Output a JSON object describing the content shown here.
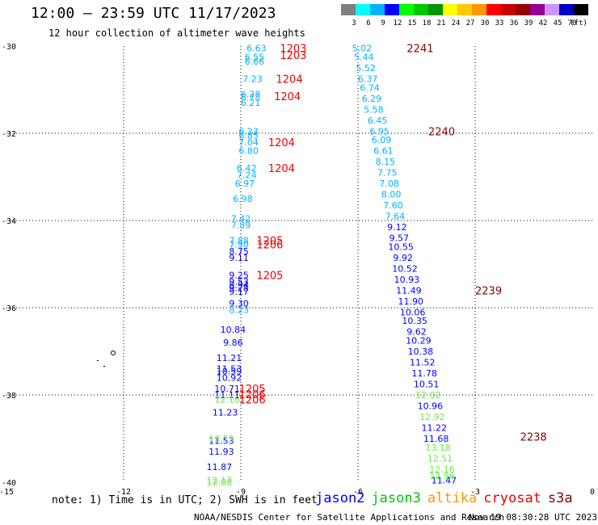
{
  "header": {
    "title": "12:00 – 23:59 UTC 11/17/2023",
    "subtitle": "12 hour collection of altimeter wave heights"
  },
  "colorbar": {
    "colors": [
      "#7f7f7f",
      "#00ffff",
      "#00b4ff",
      "#0000ff",
      "#00ff00",
      "#00c800",
      "#009600",
      "#ffff00",
      "#ffc800",
      "#ff9600",
      "#ff0000",
      "#c80000",
      "#960000",
      "#960096",
      "#c896ff",
      "#0000c8",
      "#000000"
    ],
    "labels": [
      "3",
      "6",
      "9",
      "12",
      "15",
      "18",
      "21",
      "24",
      "27",
      "30",
      "33",
      "36",
      "39",
      "42",
      "45",
      "70",
      "(ft)"
    ]
  },
  "chart_data": {
    "type": "scatter",
    "xlim": [
      -15,
      0
    ],
    "ylim": [
      -40,
      -30
    ],
    "x_ticks": [
      "-15",
      "-12",
      "-9",
      "-6",
      "-3",
      "0"
    ],
    "y_ticks": [
      "-30",
      "-32",
      "-34",
      "-36",
      "-38",
      "-40"
    ],
    "grid": true,
    "series": [
      {
        "name": "track1",
        "color": "#00b4ff",
        "points": [
          {
            "x": -8.6,
            "y": -30.05,
            "label": "6.63"
          },
          {
            "x": -8.65,
            "y": -30.25,
            "label": "6.55"
          },
          {
            "x": -8.65,
            "y": -30.35,
            "label": "6.66"
          },
          {
            "x": -8.7,
            "y": -30.75,
            "label": "7.23"
          },
          {
            "x": -8.75,
            "y": -31.1,
            "label": "6.28"
          },
          {
            "x": -8.75,
            "y": -31.18,
            "label": "6.78"
          },
          {
            "x": -8.75,
            "y": -31.3,
            "label": "6.21"
          },
          {
            "x": -8.8,
            "y": -31.95,
            "label": "6.23"
          },
          {
            "x": -8.8,
            "y": -32.05,
            "label": "6.85"
          },
          {
            "x": -8.8,
            "y": -32.2,
            "label": "7.04"
          },
          {
            "x": -8.8,
            "y": -32.4,
            "label": "6.80"
          },
          {
            "x": -8.85,
            "y": -32.8,
            "label": "6.42"
          },
          {
            "x": -8.85,
            "y": -32.95,
            "label": "7.24"
          },
          {
            "x": -8.9,
            "y": -33.15,
            "label": "6.97"
          },
          {
            "x": -8.95,
            "y": -33.5,
            "label": "6.98"
          },
          {
            "x": -9.0,
            "y": -33.95,
            "label": "7.42"
          },
          {
            "x": -9.0,
            "y": -34.1,
            "label": "7.89"
          },
          {
            "x": -9.05,
            "y": -34.45,
            "label": "7.88"
          },
          {
            "x": -9.05,
            "y": -34.55,
            "label": "7.90"
          },
          {
            "x": -9.05,
            "y": -36.05,
            "label": "8.23"
          }
        ]
      },
      {
        "name": "track1-jason2",
        "color": "#0000ff",
        "points": [
          {
            "x": -9.05,
            "y": -34.7,
            "label": "8.75"
          },
          {
            "x": -9.05,
            "y": -34.85,
            "label": "9.11"
          },
          {
            "x": -9.05,
            "y": -35.25,
            "label": "9.25"
          },
          {
            "x": -9.05,
            "y": -35.4,
            "label": "9.53"
          },
          {
            "x": -9.05,
            "y": -35.47,
            "label": "8.94"
          },
          {
            "x": -9.05,
            "y": -35.55,
            "label": "9.28"
          },
          {
            "x": -9.05,
            "y": -35.63,
            "label": "9.17"
          },
          {
            "x": -9.05,
            "y": -35.9,
            "label": "9.30"
          },
          {
            "x": -9.2,
            "y": -36.5,
            "label": "10.84"
          },
          {
            "x": -9.2,
            "y": -36.8,
            "label": "9.86"
          },
          {
            "x": -9.3,
            "y": -37.15,
            "label": "11.21"
          },
          {
            "x": -9.3,
            "y": -37.4,
            "label": "11.53"
          },
          {
            "x": -9.3,
            "y": -37.45,
            "label": "10.59"
          },
          {
            "x": -9.3,
            "y": -37.6,
            "label": "10.92"
          },
          {
            "x": -9.35,
            "y": -37.85,
            "label": "10.71"
          },
          {
            "x": -9.35,
            "y": -38.0,
            "label": "11.11"
          },
          {
            "x": -9.4,
            "y": -38.4,
            "label": "11.23"
          },
          {
            "x": -9.5,
            "y": -39.05,
            "label": "11.53"
          },
          {
            "x": -9.5,
            "y": -39.3,
            "label": "11.93"
          },
          {
            "x": -9.55,
            "y": -39.65,
            "label": "11.87"
          }
        ]
      },
      {
        "name": "track1-jason3",
        "color": "#66ee44",
        "points": [
          {
            "x": -9.35,
            "y": -38.1,
            "label": "12.16"
          },
          {
            "x": -9.5,
            "y": -39.0,
            "label": "13.13"
          },
          {
            "x": -9.55,
            "y": -39.95,
            "label": "12.17"
          },
          {
            "x": -9.55,
            "y": -40.0,
            "label": "12.08"
          }
        ]
      },
      {
        "name": "track2",
        "color": "#00b4ff",
        "points": [
          {
            "x": -5.9,
            "y": -30.05,
            "label": "5.02"
          },
          {
            "x": -5.85,
            "y": -30.25,
            "label": "5.44"
          },
          {
            "x": -5.8,
            "y": -30.5,
            "label": "5.52"
          },
          {
            "x": -5.75,
            "y": -30.75,
            "label": "6.37"
          },
          {
            "x": -5.7,
            "y": -30.95,
            "label": "6.74"
          },
          {
            "x": -5.65,
            "y": -31.2,
            "label": "6.29"
          },
          {
            "x": -5.6,
            "y": -31.45,
            "label": "5.58"
          },
          {
            "x": -5.5,
            "y": -31.7,
            "label": "6.45"
          },
          {
            "x": -5.45,
            "y": -31.95,
            "label": "6.95"
          },
          {
            "x": -5.4,
            "y": -32.15,
            "label": "6.09"
          },
          {
            "x": -5.35,
            "y": -32.4,
            "label": "6.61"
          },
          {
            "x": -5.3,
            "y": -32.65,
            "label": "8.15"
          },
          {
            "x": -5.25,
            "y": -32.9,
            "label": "7.75"
          },
          {
            "x": -5.2,
            "y": -33.15,
            "label": "7.08"
          },
          {
            "x": -5.15,
            "y": -33.4,
            "label": "8.00"
          },
          {
            "x": -5.1,
            "y": -33.65,
            "label": "7.60"
          },
          {
            "x": -5.05,
            "y": -33.9,
            "label": "7.64"
          }
        ]
      },
      {
        "name": "track2-jason2",
        "color": "#0000ff",
        "points": [
          {
            "x": -5.0,
            "y": -34.15,
            "label": "9.12"
          },
          {
            "x": -4.95,
            "y": -34.4,
            "label": "9.57"
          },
          {
            "x": -4.9,
            "y": -34.6,
            "label": "10.55"
          },
          {
            "x": -4.85,
            "y": -34.85,
            "label": "9.92"
          },
          {
            "x": -4.8,
            "y": -35.1,
            "label": "10.52"
          },
          {
            "x": -4.75,
            "y": -35.35,
            "label": "10.93"
          },
          {
            "x": -4.7,
            "y": -35.6,
            "label": "11.49"
          },
          {
            "x": -4.65,
            "y": -35.85,
            "label": "11.90"
          },
          {
            "x": -4.6,
            "y": -36.1,
            "label": "10.06"
          },
          {
            "x": -4.55,
            "y": -36.3,
            "label": "10.35"
          },
          {
            "x": -4.5,
            "y": -36.55,
            "label": "9.62"
          },
          {
            "x": -4.45,
            "y": -36.75,
            "label": "10.29"
          },
          {
            "x": -4.4,
            "y": -37.0,
            "label": "10.38"
          },
          {
            "x": -4.35,
            "y": -37.25,
            "label": "11.52"
          },
          {
            "x": -4.3,
            "y": -37.5,
            "label": "11.78"
          },
          {
            "x": -4.25,
            "y": -37.75,
            "label": "10.51"
          },
          {
            "x": -4.15,
            "y": -38.25,
            "label": "10.96"
          },
          {
            "x": -4.05,
            "y": -38.75,
            "label": "11.22"
          },
          {
            "x": -4.0,
            "y": -39.0,
            "label": "11.68"
          },
          {
            "x": -3.8,
            "y": -39.95,
            "label": "11.47"
          }
        ]
      },
      {
        "name": "track2-jason3",
        "color": "#66ee44",
        "points": [
          {
            "x": -4.2,
            "y": -38.0,
            "label": "12.02"
          },
          {
            "x": -4.1,
            "y": -38.5,
            "label": "12.92"
          },
          {
            "x": -3.95,
            "y": -39.2,
            "label": "13.18"
          },
          {
            "x": -3.9,
            "y": -39.45,
            "label": "12.51"
          },
          {
            "x": -3.85,
            "y": -39.7,
            "label": "12.16"
          },
          {
            "x": -3.85,
            "y": -39.85,
            "label": "12.96"
          }
        ]
      }
    ],
    "time_labels": [
      {
        "x": -8.0,
        "y": -30.05,
        "label": "1203",
        "color": "#ee0000"
      },
      {
        "x": -8.0,
        "y": -30.2,
        "label": "1203",
        "color": "#ee0000"
      },
      {
        "x": -8.1,
        "y": -30.75,
        "label": "1204",
        "color": "#ee0000"
      },
      {
        "x": -8.15,
        "y": -31.15,
        "label": "1204",
        "color": "#ee0000"
      },
      {
        "x": -8.3,
        "y": -32.2,
        "label": "1204",
        "color": "#ee0000"
      },
      {
        "x": -8.3,
        "y": -32.8,
        "label": "1204",
        "color": "#ee0000"
      },
      {
        "x": -8.6,
        "y": -34.45,
        "label": "1205",
        "color": "#ee0000"
      },
      {
        "x": -8.6,
        "y": -34.55,
        "label": "1206",
        "color": "#ee0000"
      },
      {
        "x": -8.6,
        "y": -35.25,
        "label": "1205",
        "color": "#ee0000"
      },
      {
        "x": -9.05,
        "y": -37.85,
        "label": "1205",
        "color": "#ee0000"
      },
      {
        "x": -9.05,
        "y": -37.98,
        "label": "1206",
        "color": "#ee0000"
      },
      {
        "x": -9.05,
        "y": -38.1,
        "label": "1206",
        "color": "#ee0000"
      },
      {
        "x": -4.75,
        "y": -30.05,
        "label": "2241",
        "color": "#880000"
      },
      {
        "x": -4.2,
        "y": -31.95,
        "label": "2240",
        "color": "#880000"
      },
      {
        "x": -3.0,
        "y": -35.6,
        "label": "2239",
        "color": "#880000"
      },
      {
        "x": -1.85,
        "y": -38.95,
        "label": "2238",
        "color": "#880000"
      }
    ]
  },
  "footer": {
    "note": "note: 1) Time is in UTC; 2) SWH is in feet",
    "credit": "NOAA/NESDIS Center for Satellite Applications and Research",
    "timestamp": "Nov 19 08:30:28 UTC 2023",
    "legend": [
      {
        "label": "jason2",
        "color": "#0000ff"
      },
      {
        "label": "jason3",
        "color": "#00c800"
      },
      {
        "label": "altika",
        "color": "#ff9600"
      },
      {
        "label": "cryosat",
        "color": "#ee0000"
      },
      {
        "label": "s3a",
        "color": "#880000"
      }
    ]
  }
}
